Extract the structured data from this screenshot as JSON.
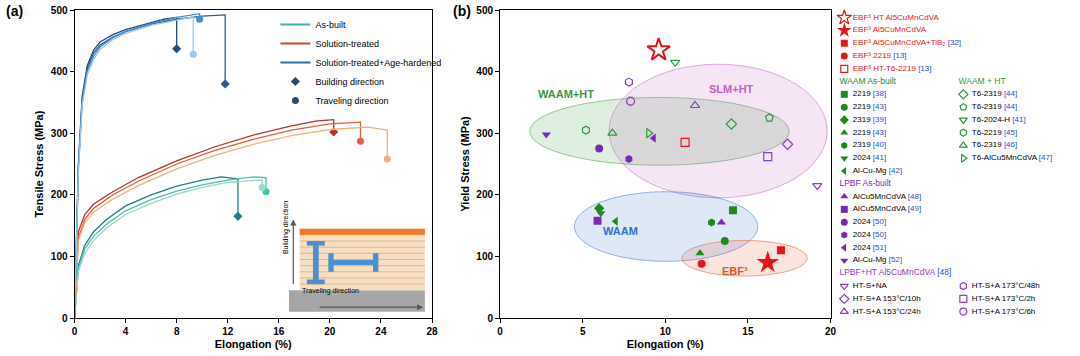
{
  "chart_data": [
    {
      "type": "line",
      "panel_label": "(a)",
      "x_label": "Elongation (%)",
      "y_label": "Tensile Stress (MPa)",
      "xlim": [
        0,
        28
      ],
      "xticks": [
        0,
        4,
        8,
        12,
        16,
        20,
        24,
        28
      ],
      "ylim": [
        0,
        500
      ],
      "yticks": [
        0,
        100,
        200,
        300,
        400,
        500
      ],
      "series": [
        {
          "name": "As-built",
          "color": "#3bb3b3",
          "curves": [
            {
              "color": "#1f7f86",
              "marker": "diamond",
              "x": [
                0,
                0.3,
                0.8,
                1.5,
                2.5,
                4,
                6,
                8,
                10,
                11.5,
                12.8,
                12.8
              ],
              "y": [
                0,
                85,
                118,
                140,
                160,
                182,
                200,
                214,
                224,
                229,
                226,
                165
              ]
            },
            {
              "color": "#4cc0b0",
              "marker": "circle",
              "x": [
                0,
                0.3,
                0.8,
                1.5,
                2.5,
                4,
                6,
                8,
                10,
                12,
                14,
                15.0,
                15.0
              ],
              "y": [
                0,
                80,
                112,
                133,
                152,
                174,
                192,
                206,
                216,
                224,
                229,
                228,
                205
              ]
            },
            {
              "color": "#9ad8c8",
              "marker": "circle",
              "x": [
                0,
                0.3,
                0.8,
                1.5,
                2.5,
                4,
                6,
                8,
                10,
                12,
                14.7,
                14.7
              ],
              "y": [
                0,
                75,
                105,
                126,
                146,
                168,
                186,
                201,
                212,
                220,
                224,
                212
              ]
            }
          ]
        },
        {
          "name": "Solution-treated",
          "color": "#d9452b",
          "curves": [
            {
              "color": "#b8322a",
              "marker": "diamond",
              "x": [
                0,
                0.3,
                0.8,
                1.5,
                3,
                5,
                8,
                11,
                14,
                17,
                19,
                20.3,
                20.3
              ],
              "y": [
                0,
                140,
                168,
                185,
                205,
                228,
                255,
                278,
                297,
                312,
                320,
                322,
                302
              ]
            },
            {
              "color": "#e0603a",
              "marker": "circle",
              "x": [
                0,
                0.3,
                0.8,
                1.5,
                3,
                5,
                8,
                11,
                14,
                17,
                20,
                22.4,
                22.4
              ],
              "y": [
                0,
                130,
                160,
                178,
                200,
                222,
                250,
                272,
                290,
                305,
                315,
                318,
                287
              ]
            },
            {
              "color": "#f4b27a",
              "marker": "circle",
              "x": [
                0,
                0.3,
                0.8,
                1.5,
                3,
                5,
                8,
                11,
                14,
                17,
                20,
                23,
                24.5,
                24.5
              ],
              "y": [
                0,
                125,
                155,
                172,
                193,
                215,
                242,
                264,
                282,
                296,
                306,
                310,
                305,
                258
              ]
            }
          ]
        },
        {
          "name": "Solution-treated+Age-hardened",
          "color": "#2f6fae",
          "curves": [
            {
              "color": "#1f4e7a",
              "marker": "diamond",
              "x": [
                0,
                0.3,
                0.6,
                1,
                1.5,
                2,
                3,
                4,
                5,
                6,
                7,
                8.0,
                8.0
              ],
              "y": [
                0,
                250,
                360,
                410,
                435,
                448,
                460,
                468,
                474,
                480,
                485,
                488,
                437
              ]
            },
            {
              "color": "#2c5d8f",
              "marker": "diamond",
              "x": [
                0,
                0.3,
                0.6,
                1,
                1.5,
                2,
                3,
                4,
                6,
                8,
                10,
                11.8,
                11.8
              ],
              "y": [
                0,
                245,
                355,
                405,
                430,
                443,
                456,
                465,
                477,
                485,
                490,
                492,
                380
              ]
            },
            {
              "color": "#3f8fcf",
              "marker": "circle",
              "x": [
                0,
                0.3,
                0.6,
                1,
                1.5,
                2,
                3,
                4,
                6,
                8,
                9.8,
                9.8
              ],
              "y": [
                0,
                240,
                350,
                400,
                425,
                440,
                455,
                465,
                478,
                488,
                494,
                485
              ]
            },
            {
              "color": "#9cc8e8",
              "marker": "circle",
              "x": [
                0,
                0.3,
                0.6,
                1,
                1.5,
                2,
                3,
                4,
                6,
                8,
                9.3,
                9.3
              ],
              "y": [
                0,
                235,
                345,
                395,
                420,
                436,
                452,
                462,
                475,
                484,
                489,
                428
              ]
            }
          ]
        }
      ],
      "markers": [
        {
          "name": "Building direction",
          "marker": "diamond",
          "color": "#2c4a6a"
        },
        {
          "name": "Traveling direction",
          "marker": "circle",
          "color": "#2c4a6a"
        }
      ],
      "inset": {
        "vertical_label": "Building direction",
        "horizontal_label": "Traveling direction"
      }
    },
    {
      "type": "scatter",
      "panel_label": "(b)",
      "x_label": "Elongation (%)",
      "y_label": "Yield Stress (MPa)",
      "xlim": [
        0,
        20
      ],
      "xticks": [
        0,
        5,
        10,
        15,
        20
      ],
      "ylim": [
        0,
        500
      ],
      "yticks": [
        0,
        100,
        200,
        300,
        400,
        500
      ],
      "groups": [
        {
          "color": "#e3141b",
          "series": [
            {
              "name": "EBF³ HT Al5CuMnCdVA",
              "marker": "star-open",
              "x": [
                9.6
              ],
              "y": [
                435
              ]
            },
            {
              "name": "EBF³ Al5CuMnCdVA",
              "marker": "star",
              "x": [
                16.2
              ],
              "y": [
                90
              ]
            },
            {
              "name": "EBF³ Al5CuMnCdVA+TiB₂ [32]",
              "marker": "square",
              "x": [
                17.0
              ],
              "y": [
                110
              ]
            },
            {
              "name": "EBF³ 2219 [13]",
              "marker": "circle",
              "x": [
                12.2
              ],
              "y": [
                88
              ]
            },
            {
              "name": "EBF³ HT-T6-2219 [13]",
              "marker": "square-open",
              "x": [
                11.2
              ],
              "y": [
                285
              ]
            }
          ]
        },
        {
          "title": "WAAM As-built",
          "color": "#1e8a1e",
          "series": [
            {
              "name": "2219 [38]",
              "marker": "square",
              "x": [
                14.1
              ],
              "y": [
                175
              ]
            },
            {
              "name": "2219 [43]",
              "marker": "circle",
              "x": [
                13.6
              ],
              "y": [
                125
              ]
            },
            {
              "name": "2319 [39]",
              "marker": "diamond",
              "x": [
                6.0
              ],
              "y": [
                178
              ]
            },
            {
              "name": "2219 [43]",
              "marker": "triangle-up",
              "x": [
                12.1
              ],
              "y": [
                105
              ]
            },
            {
              "name": "2319 [40]",
              "marker": "hexagon",
              "x": [
                12.8
              ],
              "y": [
                155
              ]
            },
            {
              "name": "2024 [41]",
              "marker": "triangle-down",
              "x": [
                6.1
              ],
              "y": [
                170
              ]
            },
            {
              "name": "Al-Cu-Mg [42]",
              "marker": "triangle-left",
              "x": [
                7.0
              ],
              "y": [
                157
              ]
            }
          ]
        },
        {
          "title": "WAAM + HT",
          "color": "#2e9a3e",
          "series": [
            {
              "name": "T6-2319 [44]",
              "marker": "diamond-open",
              "x": [
                14.0
              ],
              "y": [
                315
              ]
            },
            {
              "name": "T6-2319 [44]",
              "marker": "pentagon-open",
              "x": [
                16.3
              ],
              "y": [
                325
              ]
            },
            {
              "name": "T6-2024-H [41]",
              "marker": "triangle-down-open",
              "x": [
                10.6
              ],
              "y": [
                415
              ]
            },
            {
              "name": "T6-2219 [45]",
              "marker": "hexagon-open",
              "x": [
                5.2
              ],
              "y": [
                305
              ]
            },
            {
              "name": "T6-2319 [46]",
              "marker": "triangle-up-open",
              "x": [
                6.8
              ],
              "y": [
                300
              ]
            },
            {
              "name": "T6-AlCu5MnCdVA [47]",
              "marker": "triangle-right-open",
              "x": [
                9.0
              ],
              "y": [
                300
              ]
            }
          ]
        },
        {
          "title": "LPBF As-built",
          "color": "#7a28b8",
          "series": [
            {
              "name": "AlCu5MnCdVA [48]",
              "marker": "triangle-up",
              "x": [
                13.4
              ],
              "y": [
                155
              ]
            },
            {
              "name": "AlCu5MnCdVA [49]",
              "marker": "square",
              "x": [
                5.9
              ],
              "y": [
                158
              ]
            },
            {
              "name": "2024 [50]",
              "marker": "circle",
              "x": [
                6.0
              ],
              "y": [
                275
              ]
            },
            {
              "name": "2024 [50]",
              "marker": "hexagon",
              "x": [
                7.8
              ],
              "y": [
                258
              ]
            },
            {
              "name": "2024 [51]",
              "marker": "triangle-left",
              "x": [
                9.3
              ],
              "y": [
                292
              ]
            },
            {
              "name": "Al-Cu-Mg [52]",
              "marker": "triangle-down",
              "x": [
                2.8
              ],
              "y": [
                298
              ]
            }
          ]
        },
        {
          "title": "LPBF+HT Al5CuMnCdVA [48]",
          "color": "#8a3cc8",
          "series": [
            {
              "name": "HT-S+NA",
              "marker": "triangle-down-open",
              "x": [
                19.2
              ],
              "y": [
                215
              ]
            },
            {
              "name": "HT-S+A 173°C/48h",
              "marker": "hexagon-open",
              "x": [
                7.8
              ],
              "y": [
                383
              ]
            },
            {
              "name": "HT-S+A 153°C/10h",
              "marker": "diamond-open",
              "x": [
                17.4
              ],
              "y": [
                282
              ]
            },
            {
              "name": "HT-S+A 173°C/2h",
              "marker": "square-open",
              "x": [
                16.2
              ],
              "y": [
                262
              ]
            },
            {
              "name": "HT-S+A 153°C/24h",
              "marker": "triangle-up-open",
              "x": [
                11.8
              ],
              "y": [
                345
              ]
            },
            {
              "name": "HT-S+A 173°C/6h",
              "marker": "circle-open",
              "x": [
                7.9
              ],
              "y": [
                352
              ]
            }
          ]
        }
      ],
      "regions": [
        {
          "label": "WAAM+HT",
          "color": "#3a9a3a",
          "x": [
            1.8,
            17.5
          ],
          "y": [
            248,
            358
          ],
          "label_at": [
            4.0,
            364
          ]
        },
        {
          "label": "SLM+HT",
          "color": "#c060c0",
          "x": [
            6.6,
            19.8
          ],
          "y": [
            195,
            412
          ],
          "label_at": [
            14.0,
            372
          ]
        },
        {
          "label": "WAAM",
          "color": "#2f6fd0",
          "x": [
            4.5,
            15.6
          ],
          "y": [
            92,
            205
          ],
          "label_at": [
            7.3,
            142
          ]
        },
        {
          "label": "EBF³",
          "color": "#e0582a",
          "x": [
            11.0,
            18.6
          ],
          "y": [
            68,
            126
          ],
          "label_at": [
            14.2,
            76
          ]
        }
      ]
    }
  ]
}
